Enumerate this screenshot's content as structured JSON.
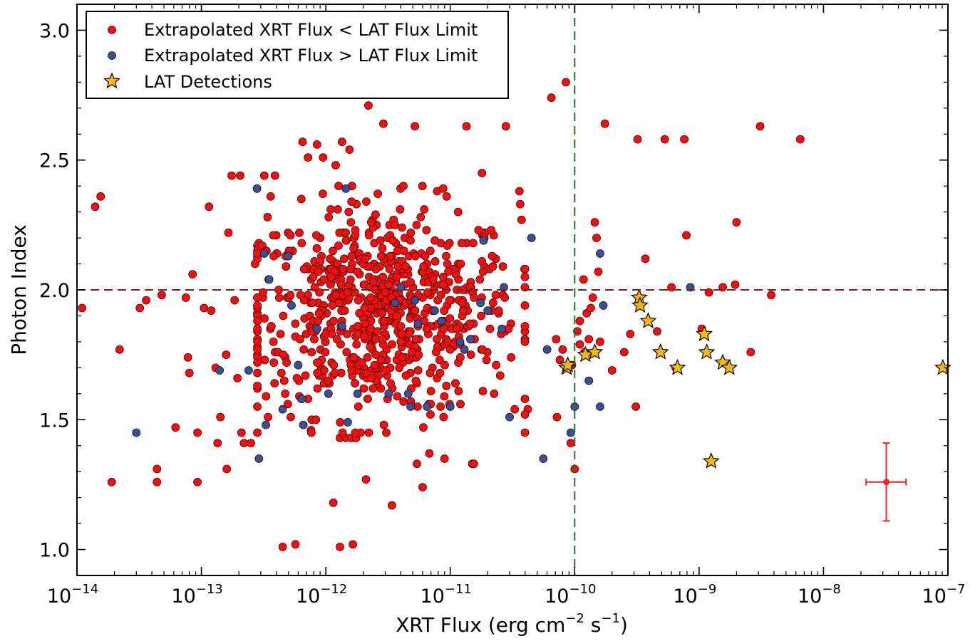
{
  "chart_data": {
    "type": "scatter",
    "title": "",
    "xlabel": "XRT Flux (erg cm",
    "xlabel_sup1": "−2",
    "xlabel_mid": " s",
    "xlabel_sup2": "−1",
    "xlabel_end": ")",
    "ylabel": "Photon Index",
    "x_scale": "log",
    "xlim": [
      1e-14,
      1e-07
    ],
    "ylim": [
      0.9,
      3.1
    ],
    "x_tick_base": "10",
    "x_ticks": [
      {
        "exp": -14,
        "label": "−14"
      },
      {
        "exp": -13,
        "label": "−13"
      },
      {
        "exp": -12,
        "label": "−12"
      },
      {
        "exp": -11,
        "label": "−11"
      },
      {
        "exp": -10,
        "label": "−10"
      },
      {
        "exp": -9,
        "label": "−9"
      },
      {
        "exp": -8,
        "label": "−8"
      },
      {
        "exp": -7,
        "label": "−7"
      }
    ],
    "y_ticks": [
      {
        "value": 1.0,
        "label": "1.0"
      },
      {
        "value": 1.5,
        "label": "1.5"
      },
      {
        "value": 2.0,
        "label": "2.0"
      },
      {
        "value": 2.5,
        "label": "2.5"
      },
      {
        "value": 3.0,
        "label": "3.0"
      }
    ],
    "grid": false,
    "legend_position": "top-left",
    "reference_lines": [
      {
        "orientation": "horizontal",
        "value": 2.0,
        "color": "#8b1a1a",
        "style": "dashed"
      },
      {
        "orientation": "vertical",
        "value": 1e-10,
        "color": "#1a7a1a",
        "style": "dashed"
      }
    ],
    "error_bar_example": {
      "x": 3.2e-08,
      "y": 1.26,
      "xerr_low": 1e-08,
      "xerr_high": 1.4e-08,
      "yerr": 0.15,
      "color": "#ff2020"
    },
    "series": [
      {
        "name": "Extrapolated XRT Flux < LAT Flux Limit",
        "marker": "circle",
        "color": "#ee1111",
        "points": [
          [
            1.1e-14,
            1.93
          ],
          [
            1.4e-14,
            2.32
          ],
          [
            1.55e-14,
            2.36
          ],
          [
            1.9e-14,
            1.26
          ],
          [
            2.2e-14,
            1.77
          ],
          [
            3.2e-14,
            1.93
          ],
          [
            3.6e-14,
            1.96
          ],
          [
            4.4e-14,
            1.31
          ],
          [
            4.4e-14,
            1.26
          ],
          [
            4.8e-14,
            1.98
          ],
          [
            6.2e-14,
            1.47
          ],
          [
            7.5e-14,
            1.97
          ],
          [
            7.8e-14,
            1.74
          ],
          [
            8e-14,
            1.68
          ],
          [
            8.5e-14,
            2.06
          ],
          [
            9.3e-14,
            1.45
          ],
          [
            9.3e-14,
            1.26
          ],
          [
            1.05e-13,
            1.93
          ],
          [
            1.15e-13,
            2.32
          ],
          [
            1.2e-13,
            1.92
          ],
          [
            1.3e-13,
            1.7
          ],
          [
            1.35e-13,
            1.41
          ],
          [
            1.42e-13,
            1.51
          ],
          [
            1.58e-13,
            1.75
          ],
          [
            1.65e-13,
            2.22
          ],
          [
            1.6e-13,
            1.31
          ],
          [
            1.75e-13,
            2.44
          ],
          [
            1.85e-13,
            1.96
          ],
          [
            1.95e-13,
            1.66
          ],
          [
            2.05e-13,
            2.44
          ],
          [
            2.1e-13,
            1.45
          ],
          [
            2.2e-13,
            1.41
          ],
          [
            2.5e-13,
            1.41
          ],
          [
            2.7e-13,
            2.1
          ],
          [
            2.9e-13,
            2.18
          ],
          [
            3.2e-13,
            2.44
          ],
          [
            3.4e-13,
            2.28
          ],
          [
            3.6e-13,
            2.36
          ],
          [
            3.9e-13,
            2.44
          ],
          [
            4.5e-13,
            1.01
          ],
          [
            5.7e-13,
            1.02
          ],
          [
            6.5e-13,
            2.57
          ],
          [
            7.2e-13,
            2.51
          ],
          [
            8.5e-13,
            2.56
          ],
          [
            9.5e-13,
            2.51
          ],
          [
            1.2e-12,
            2.48
          ],
          [
            1.35e-12,
            2.57
          ],
          [
            1.55e-12,
            2.54
          ],
          [
            1.15e-12,
            1.18
          ],
          [
            1.3e-12,
            1.01
          ],
          [
            1.65e-12,
            1.02
          ],
          [
            2.1e-12,
            1.27
          ],
          [
            2.2e-12,
            2.71
          ],
          [
            2.9e-12,
            2.64
          ],
          [
            3.4e-12,
            1.17
          ],
          [
            5.2e-12,
            2.63
          ],
          [
            1.35e-11,
            2.63
          ],
          [
            1.8e-11,
            2.45
          ],
          [
            2.8e-11,
            2.63
          ],
          [
            3.6e-11,
            2.38
          ],
          [
            6.5e-11,
            2.74
          ],
          [
            8.5e-11,
            2.8
          ],
          [
            1e-10,
            1.31
          ],
          [
            9.3e-11,
            1.41
          ],
          [
            1.18e-10,
            2.04
          ],
          [
            1.45e-10,
            2.26
          ],
          [
            1.75e-10,
            2.64
          ],
          [
            2e-10,
            1.69
          ],
          [
            2.8e-10,
            1.83
          ],
          [
            3.1e-10,
            1.55
          ],
          [
            3.2e-10,
            2.58
          ],
          [
            3.7e-10,
            2.12
          ],
          [
            4.6e-10,
            1.84
          ],
          [
            5.3e-10,
            2.58
          ],
          [
            6e-10,
            2.01
          ],
          [
            6.5e-10,
            1.7
          ],
          [
            7.6e-10,
            2.58
          ],
          [
            7.9e-10,
            2.21
          ],
          [
            1.05e-09,
            1.85
          ],
          [
            1.2e-09,
            1.99
          ],
          [
            1.55e-09,
            2.01
          ],
          [
            1.95e-09,
            2.02
          ],
          [
            2e-09,
            2.26
          ],
          [
            2.6e-09,
            1.76
          ],
          [
            3.1e-09,
            2.63
          ],
          [
            3.8e-09,
            1.98
          ],
          [
            6.5e-09,
            2.58
          ],
          [
            6e-12,
            1.24
          ],
          [
            6.8e-12,
            1.37
          ],
          [
            5.4e-12,
            1.33
          ],
          [
            1.5e-11,
            1.33
          ],
          [
            1.55e-11,
            1.33
          ],
          [
            1.3e-12,
            1.43
          ],
          [
            1.45e-12,
            1.43
          ],
          [
            1.6e-12,
            1.43
          ],
          [
            1.75e-12,
            1.43
          ],
          [
            9e-12,
            1.35
          ],
          [
            4.2e-11,
            1.54
          ],
          [
            3.3e-11,
            1.54
          ],
          [
            7.2e-11,
            1.51
          ],
          [
            7.6e-11,
            1.73
          ],
          [
            7.1e-11,
            1.81
          ],
          [
            8e-11,
            1.77
          ],
          [
            9.5e-11,
            1.71
          ],
          [
            1.05e-10,
            1.84
          ],
          [
            1.1e-10,
            1.79
          ],
          [
            1.2e-10,
            1.76
          ],
          [
            1.3e-10,
            1.81
          ],
          [
            1.4e-10,
            1.97
          ],
          [
            1.6e-10,
            1.8
          ],
          [
            2.5e-10,
            1.76
          ],
          [
            1.1e-10,
            1.88
          ],
          [
            1.25e-10,
            1.91
          ],
          [
            1.35e-10,
            1.93
          ],
          [
            1.5e-10,
            2.2
          ],
          [
            1.55e-10,
            2.07
          ]
        ],
        "generated_fill": {
          "count": 720,
          "x_log_center": -11.55,
          "x_log_spread": 0.55,
          "y_center": 1.92,
          "y_spread": 0.2,
          "x_log_min": -12.55,
          "x_log_max": -10.4,
          "y_min": 1.45,
          "y_max": 2.4
        }
      },
      {
        "name": "Extrapolated XRT Flux > LAT Flux Limit",
        "marker": "circle",
        "color": "#3f4f8e",
        "points": [
          [
            3e-14,
            1.45
          ],
          [
            1.4e-13,
            1.69
          ],
          [
            2.4e-13,
            1.69
          ],
          [
            2.8e-13,
            2.39
          ],
          [
            2.9e-13,
            1.35
          ],
          [
            3.2e-13,
            2.14
          ],
          [
            3.3e-13,
            1.48
          ],
          [
            3.5e-13,
            2.04
          ],
          [
            4.5e-13,
            1.54
          ],
          [
            5e-13,
            2.13
          ],
          [
            5.3e-13,
            1.94
          ],
          [
            6e-13,
            1.71
          ],
          [
            6.4e-13,
            1.58
          ],
          [
            6.6e-13,
            1.48
          ],
          [
            8.5e-13,
            1.85
          ],
          [
            1.05e-12,
            1.6
          ],
          [
            1.35e-12,
            1.86
          ],
          [
            1.5e-12,
            1.49
          ],
          [
            1.45e-12,
            2.39
          ],
          [
            1.8e-12,
            1.6
          ],
          [
            3.2e-12,
            1.6
          ],
          [
            3.6e-12,
            1.95
          ],
          [
            4e-12,
            2.01
          ],
          [
            4.6e-12,
            1.6
          ],
          [
            5.2e-12,
            1.96
          ],
          [
            4.8e-12,
            1.55
          ],
          [
            5.5e-12,
            1.87
          ],
          [
            6.5e-12,
            1.55
          ],
          [
            7.5e-12,
            1.92
          ],
          [
            8.5e-12,
            1.88
          ],
          [
            1e-11,
            1.55
          ],
          [
            1.2e-11,
            1.8
          ],
          [
            1.3e-11,
            1.77
          ],
          [
            1.45e-11,
            1.81
          ],
          [
            1.75e-11,
            1.95
          ],
          [
            1.85e-11,
            2.19
          ],
          [
            2e-11,
            1.92
          ],
          [
            2.7e-11,
            2.01
          ],
          [
            2.6e-11,
            1.85
          ],
          [
            3e-11,
            1.51
          ],
          [
            4.5e-11,
            2.2
          ],
          [
            5.6e-11,
            1.35
          ],
          [
            6e-11,
            1.77
          ],
          [
            9.3e-11,
            1.45
          ],
          [
            1e-10,
            1.55
          ],
          [
            1.3e-10,
            1.65
          ],
          [
            1.6e-10,
            2.14
          ],
          [
            1.6e-10,
            1.55
          ],
          [
            1.7e-10,
            1.94
          ],
          [
            8.5e-10,
            2.01
          ]
        ]
      },
      {
        "name": "LAT Detections",
        "marker": "star",
        "color": "#f7b90f",
        "points": [
          [
            8.6e-11,
            1.7
          ],
          [
            8.8e-11,
            1.71
          ],
          [
            1.22e-10,
            1.75
          ],
          [
            1.45e-10,
            1.76
          ],
          [
            3.3e-10,
            1.97
          ],
          [
            3.35e-10,
            1.94
          ],
          [
            3.9e-10,
            1.88
          ],
          [
            4.9e-10,
            1.76
          ],
          [
            6.7e-10,
            1.7
          ],
          [
            1.1e-09,
            1.83
          ],
          [
            1.15e-09,
            1.76
          ],
          [
            1.55e-09,
            1.72
          ],
          [
            1.75e-09,
            1.7
          ],
          [
            1.25e-09,
            1.34
          ],
          [
            9.1e-08,
            1.7
          ]
        ]
      }
    ]
  }
}
